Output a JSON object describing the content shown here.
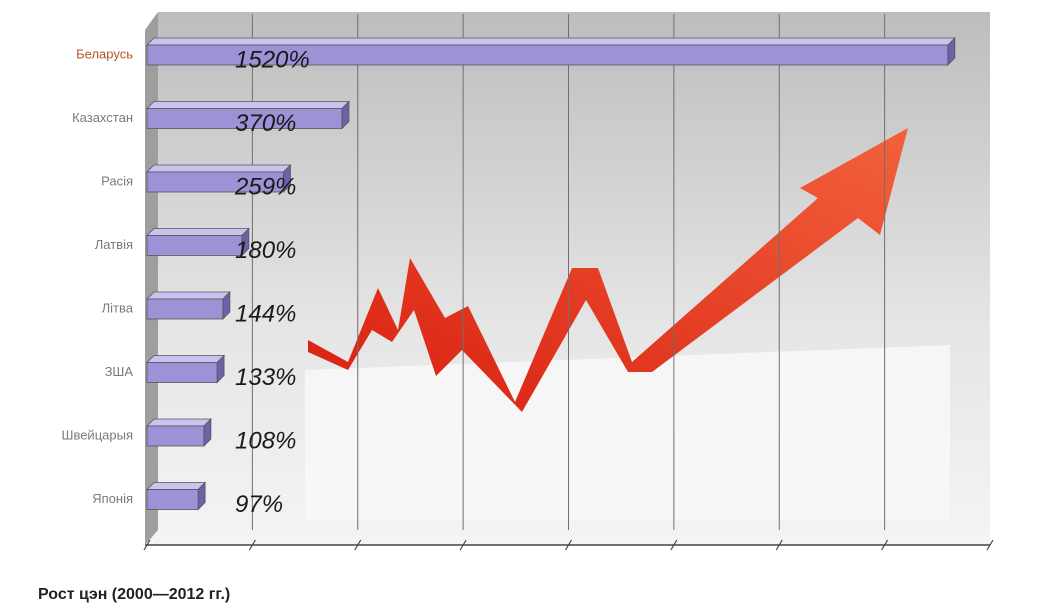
{
  "chart_data": {
    "type": "bar",
    "orientation": "horizontal",
    "title": "Рост цэн (2000—2012 гг.)",
    "categories": [
      "Беларусь",
      "Казахстан",
      "Расія",
      "Латвія",
      "Літва",
      "ЗША",
      "Швейцарыя",
      "Японія"
    ],
    "values": [
      1520,
      370,
      259,
      180,
      144,
      133,
      108,
      97
    ],
    "value_labels": [
      "1520%",
      "370%",
      "259%",
      "180%",
      "144%",
      "133%",
      "108%",
      "97%"
    ],
    "color": "#9b93d6",
    "label_colors": [
      "#b5542c",
      "#7a7a7a",
      "#7a7a7a",
      "#7a7a7a",
      "#7a7a7a",
      "#7a7a7a",
      "#7a7a7a",
      "#7a7a7a"
    ],
    "xlim": [
      0,
      1600
    ],
    "xticks": [
      0,
      200,
      400,
      600,
      800,
      1000,
      1200,
      1400,
      1600
    ],
    "grid": true
  }
}
